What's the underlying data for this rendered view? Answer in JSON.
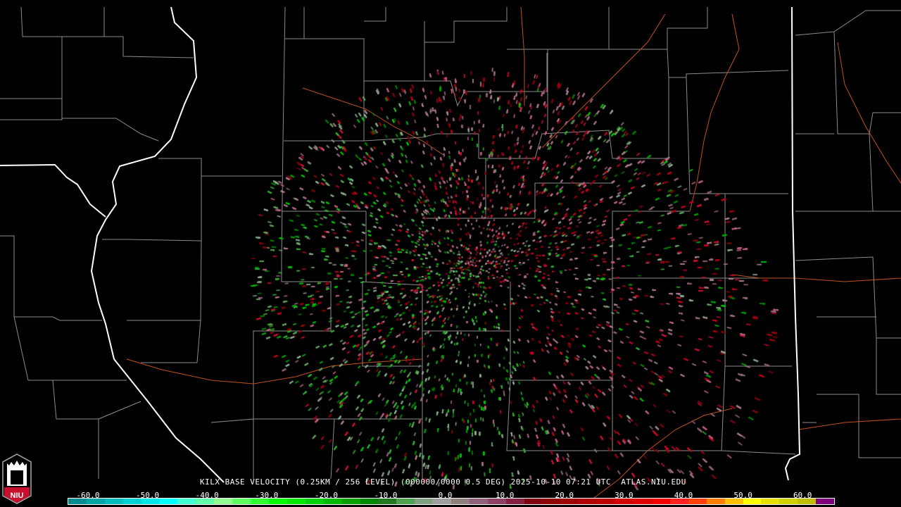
{
  "product": {
    "caption": "KILX BASE VELOCITY (0.25KM / 256 LEVEL) (000000/0000 0.5 DEG) 2025-10-10 07:21 UTC  ATLAS.NIU.EDU",
    "radar_site": "KILX",
    "elevation": "0.5 DEG",
    "datetime": "2025-10-10 07:21 UTC",
    "source": "ATLAS.NIU.EDU"
  },
  "logo": {
    "text": "NIU",
    "color": "#c8102e"
  },
  "legend": {
    "ticks": [
      "-60.0",
      "-50.0",
      "-40.0",
      "-30.0",
      "-20.0",
      "-10.0",
      "0.0",
      "10.0",
      "20.0",
      "30.0",
      "40.0",
      "50.0",
      "60.0"
    ],
    "colors": [
      "#008c8c",
      "#00a5a5",
      "#00bdbd",
      "#00d2d2",
      "#00e6e6",
      "#00ffff",
      "#40ffd0",
      "#60ffa8",
      "#90ff90",
      "#60ff60",
      "#30ff30",
      "#00ff00",
      "#00e800",
      "#00d000",
      "#00b800",
      "#00a000",
      "#008800",
      "#207820",
      "#50a050",
      "#80a080",
      "#a0a0a0",
      "#908080",
      "#906078",
      "#904060",
      "#882040",
      "#800010",
      "#900000",
      "#a00000",
      "#b00000",
      "#c00000",
      "#d00000",
      "#e00000",
      "#f00000",
      "#ff2020",
      "#ff4000",
      "#ff8000",
      "#ffc000",
      "#ffff00",
      "#e8e000",
      "#d0d000",
      "#c0c000",
      "#800080"
    ]
  },
  "map": {
    "state_border_color": "#ffffff",
    "county_border_color": "#8c8c8c",
    "highway_color": "#c05020",
    "inbound_color": "#00c000",
    "outbound_color": "#c00020"
  }
}
